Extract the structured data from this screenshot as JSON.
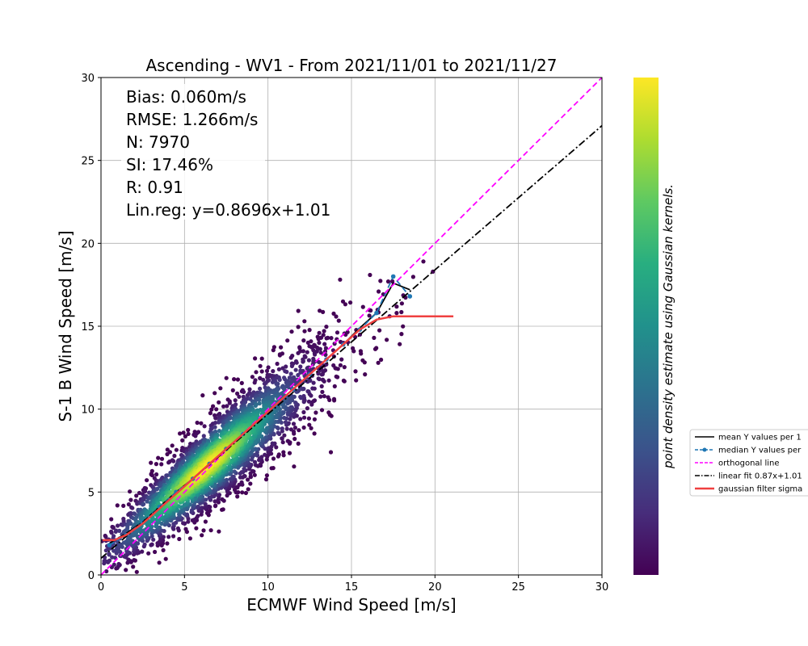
{
  "chart_data": {
    "type": "scatter",
    "title": "Ascending - WV1 - From 2021/11/01 to 2021/11/27",
    "xlabel": "ECMWF Wind Speed [m/s]",
    "ylabel": "S-1 B Wind Speed [m/s]",
    "xlim": [
      0,
      30
    ],
    "ylim": [
      0,
      30
    ],
    "xticks": [
      0,
      5,
      10,
      15,
      20,
      25,
      30
    ],
    "yticks": [
      0,
      5,
      10,
      15,
      20,
      25,
      30
    ],
    "grid": true,
    "stats": [
      "Bias: 0.060m/s",
      "RMSE: 1.266m/s",
      "N: 7970",
      "SI: 17.46%",
      "R: 0.91",
      "Lin.reg: y=0.8696x+1.01"
    ],
    "colorbar": {
      "label": "point density estimate using Gaussian kernels.",
      "colormap": [
        "#440154",
        "#472d7b",
        "#3b528b",
        "#2c728e",
        "#21918c",
        "#28ae80",
        "#5ec962",
        "#addc30",
        "#fde725"
      ]
    },
    "legend_position": "right, outside plot",
    "series": [
      {
        "name": "mean Y values per 1",
        "color": "#000000",
        "style": "solid",
        "x": [
          0.5,
          1.5,
          2.5,
          3.5,
          4.5,
          5.5,
          6.5,
          7.5,
          8.5,
          9.5,
          10.5,
          11.5,
          12.5,
          13.5,
          14.5,
          15.5,
          16.5,
          17.5,
          18.5
        ],
        "y": [
          1.9,
          2.5,
          3.2,
          4.1,
          5.0,
          5.8,
          6.7,
          7.6,
          8.5,
          9.4,
          10.3,
          11.2,
          12.1,
          13.0,
          13.9,
          14.9,
          15.8,
          17.6,
          17.2
        ]
      },
      {
        "name": "median Y values per",
        "color": "#1f77b4",
        "style": "dashed",
        "x": [
          0.5,
          1.5,
          2.5,
          3.5,
          4.5,
          5.5,
          6.5,
          7.5,
          8.5,
          9.5,
          10.5,
          11.5,
          12.5,
          13.5,
          14.5,
          15.5,
          16.5,
          17.5,
          18.5
        ],
        "y": [
          1.8,
          2.4,
          3.2,
          4.1,
          5.0,
          5.8,
          6.7,
          7.6,
          8.5,
          9.4,
          10.3,
          11.2,
          12.1,
          13.0,
          13.9,
          14.8,
          15.8,
          18.0,
          16.8
        ]
      },
      {
        "name": "orthogonal line",
        "color": "#ff00ff",
        "style": "dashed",
        "x": [
          0,
          30
        ],
        "y": [
          0,
          30
        ]
      },
      {
        "name": "linear fit 0.87x+1.01",
        "color": "#000000",
        "style": "dashdot",
        "x": [
          0,
          30
        ],
        "y": [
          1.01,
          27.098
        ]
      },
      {
        "name": "gaussian filter sigma",
        "color": "#ef4040",
        "style": "solid",
        "x": [
          0.1,
          0.8,
          1.5,
          2.5,
          3.5,
          4.5,
          5.5,
          6.5,
          7.5,
          8.5,
          9.5,
          10.5,
          11.5,
          12.5,
          13.5,
          14.5,
          15.5,
          16.5,
          17.5,
          18.5,
          19.5,
          21.1
        ],
        "y": [
          2.1,
          2.1,
          2.4,
          3.1,
          4.0,
          4.9,
          5.8,
          6.7,
          7.6,
          8.5,
          9.4,
          10.3,
          11.2,
          12.1,
          13.0,
          13.9,
          14.8,
          15.4,
          15.6,
          15.6,
          15.6,
          15.6
        ]
      }
    ]
  }
}
